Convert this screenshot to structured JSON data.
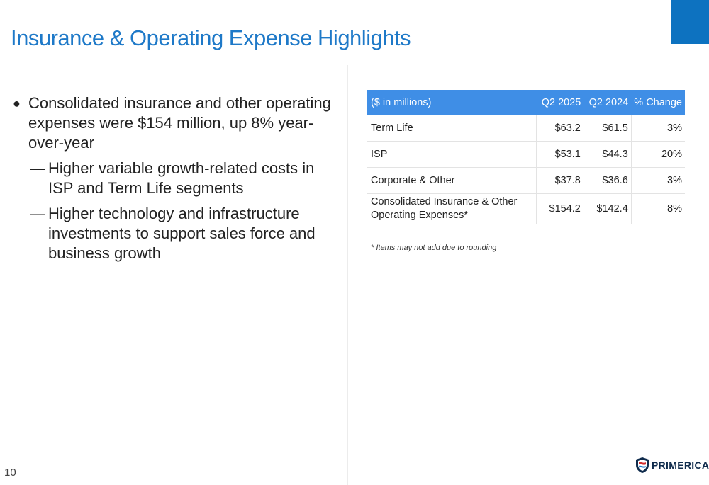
{
  "title": "Insurance & Operating Expense Highlights",
  "bullet": {
    "main": "Consolidated insurance and other operating expenses were $154 million, up 8% year-over-year",
    "subs": [
      "Higher variable growth-related costs in ISP and Term Life segments",
      "Higher technology and infrastructure investments to support sales force and business growth"
    ]
  },
  "table": {
    "headers": [
      "($ in millions)",
      "Q2 2025",
      "Q2 2024",
      "% Change"
    ],
    "rows": [
      [
        "Term Life",
        "$63.2",
        "$61.5",
        "3%"
      ],
      [
        "ISP",
        "$53.1",
        "$44.3",
        "20%"
      ],
      [
        "Corporate & Other",
        "$37.8",
        "$36.6",
        "3%"
      ],
      [
        "Consolidated Insurance & Other Operating Expenses*",
        "$154.2",
        "$142.4",
        "8%"
      ]
    ],
    "footnote": "* Items may not add due to rounding"
  },
  "page_number": "10",
  "logo": {
    "text": "PRIMERICA",
    "mark": "®"
  },
  "colors": {
    "accent": "#1e79c8",
    "header_bg": "#3f8ee6",
    "corner": "#0d72c0"
  }
}
